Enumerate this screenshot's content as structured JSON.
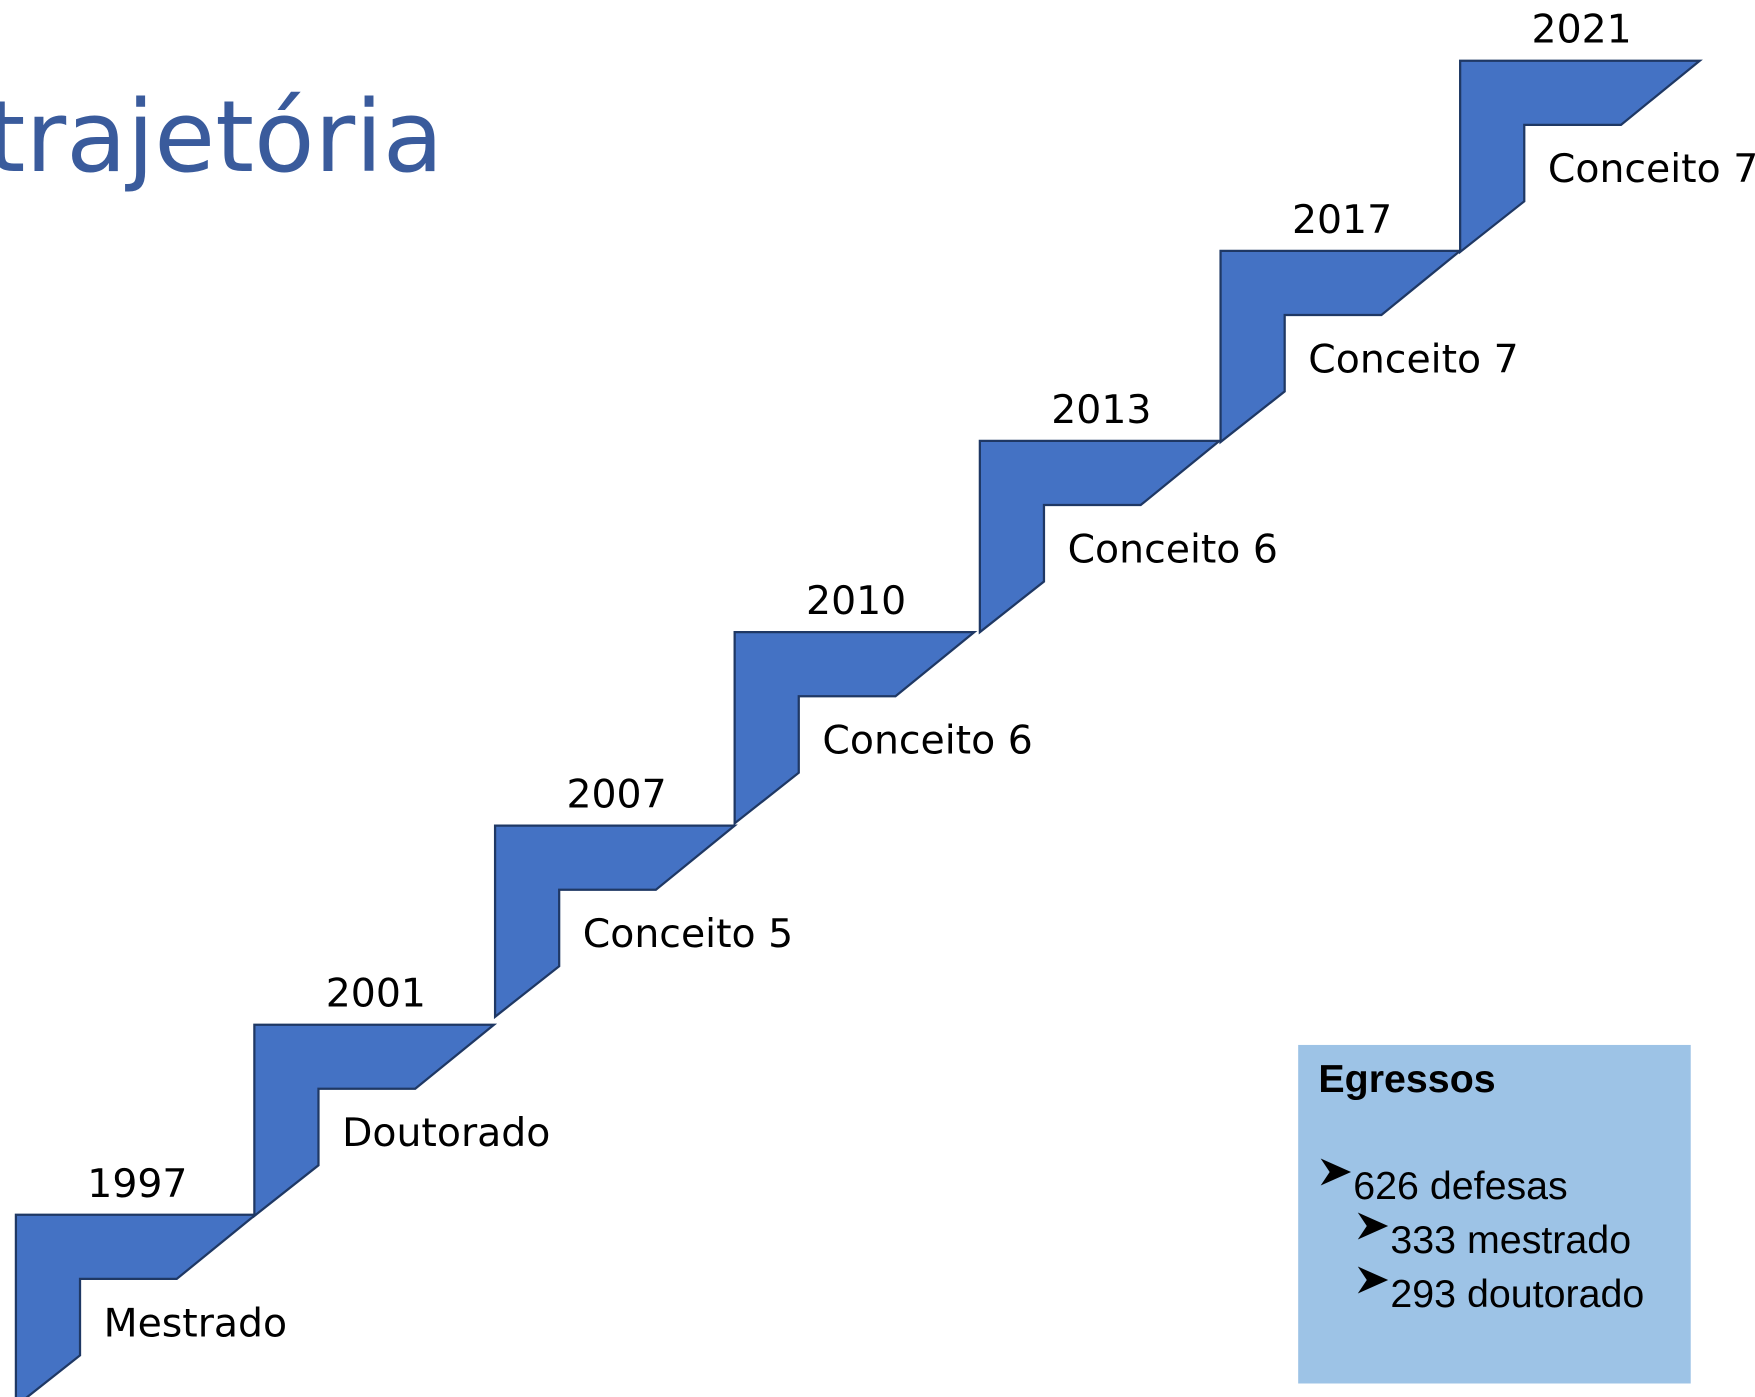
{
  "title": "trajetória",
  "steps": [
    {
      "year": "1997",
      "label": "Mestrado"
    },
    {
      "year": "2001",
      "label": "Doutorado"
    },
    {
      "year": "2007",
      "label": "Conceito 5"
    },
    {
      "year": "2010",
      "label": "Conceito 6"
    },
    {
      "year": "2013",
      "label": "Conceito 6"
    },
    {
      "year": "2017",
      "label": "Conceito 7"
    },
    {
      "year": "2021",
      "label": "Conceito 7"
    }
  ],
  "box": {
    "heading": "Egressos",
    "items": [
      "626 defesas",
      "333 mestrado",
      "293 doutorado"
    ]
  }
}
